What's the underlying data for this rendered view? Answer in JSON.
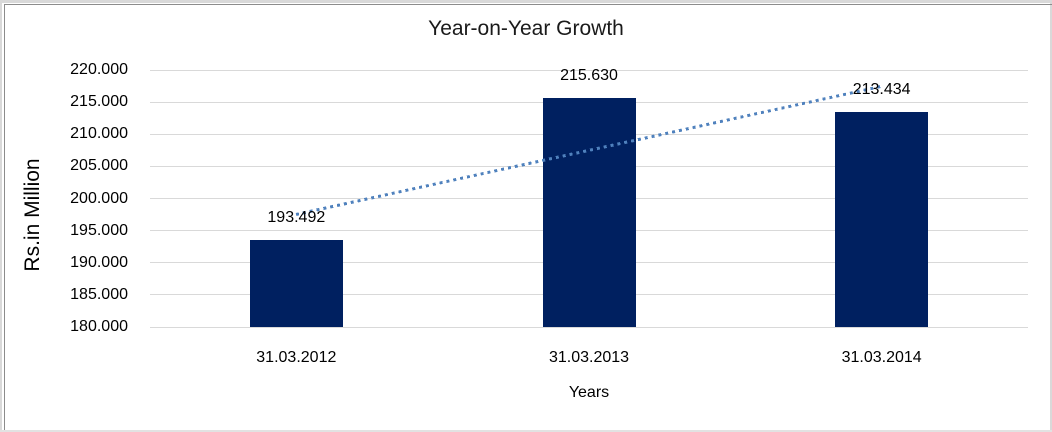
{
  "chart_data": {
    "type": "bar",
    "title": "Year-on-Year Growth",
    "xlabel": "Years",
    "ylabel": "Rs.in Million",
    "categories": [
      "31.03.2012",
      "31.03.2013",
      "31.03.2014"
    ],
    "values": [
      193.492,
      215.63,
      213.434
    ],
    "value_labels": [
      "193.492",
      "215.630",
      "213.434"
    ],
    "ylim": [
      180,
      220
    ],
    "ytick_step": 5,
    "ytick_labels": [
      "180.000",
      "185.000",
      "190.000",
      "195.000",
      "200.000",
      "205.000",
      "210.000",
      "215.000",
      "220.000"
    ],
    "grid": true,
    "legend": "none",
    "trendline": {
      "type": "linear",
      "style": "dotted"
    },
    "colors": {
      "bar": "#002060",
      "gridline": "#d9d9d9",
      "trendline": "#4f81bd",
      "text": "#000000",
      "title_text": "#1a1a1a"
    }
  }
}
